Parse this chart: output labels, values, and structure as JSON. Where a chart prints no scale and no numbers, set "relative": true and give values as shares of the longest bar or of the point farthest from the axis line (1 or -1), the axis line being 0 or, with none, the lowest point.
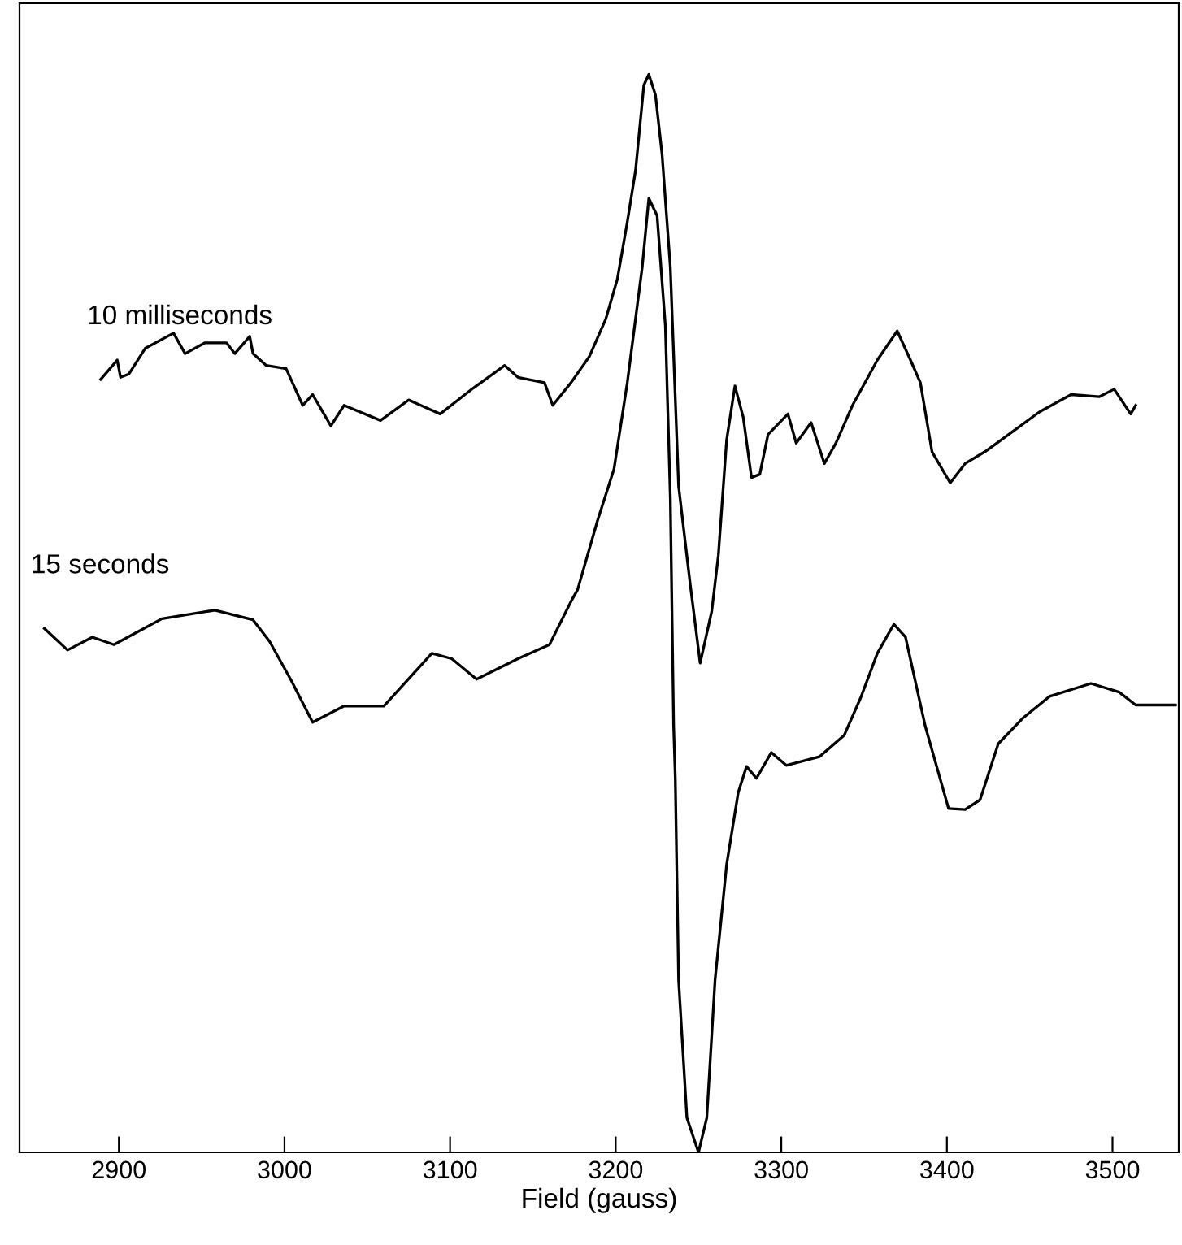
{
  "chart_data": {
    "type": "line",
    "relative": true,
    "xlabel": "Field (gauss)",
    "xlim": [
      2840,
      3540
    ],
    "xticks": [
      2900,
      3000,
      3100,
      3200,
      3300,
      3400,
      3500
    ],
    "tick_labels": "x",
    "grid": false,
    "legend": false,
    "marker": "none",
    "line_style": "solid",
    "series": [
      {
        "name": "10 milliseconds",
        "color": "#000000",
        "x": [
          2889,
          2899,
          2901,
          2906,
          2916,
          2933,
          2940,
          2952,
          2965,
          2970,
          2979,
          2981,
          2989,
          3001,
          3011,
          3017,
          3028,
          3036,
          3058,
          3075,
          3094,
          3114,
          3133,
          3141,
          3157,
          3162,
          3173,
          3184,
          3194,
          3201,
          3207,
          3212,
          3217,
          3220,
          3224,
          3228,
          3233,
          3238,
          3245,
          3251,
          3258,
          3262,
          3267,
          3272,
          3277,
          3282,
          3287,
          3292,
          3304,
          3309,
          3318,
          3326,
          3333,
          3343,
          3358,
          3370,
          3378,
          3384,
          3391,
          3402,
          3411,
          3423,
          3440,
          3456,
          3475,
          3492,
          3501,
          3511,
          3514
        ],
        "values": [
          0.717,
          0.735,
          0.719,
          0.722,
          0.746,
          0.76,
          0.741,
          0.751,
          0.751,
          0.741,
          0.757,
          0.741,
          0.73,
          0.727,
          0.693,
          0.703,
          0.674,
          0.693,
          0.679,
          0.698,
          0.685,
          0.709,
          0.73,
          0.719,
          0.714,
          0.693,
          0.714,
          0.738,
          0.773,
          0.81,
          0.863,
          0.911,
          0.99,
          1.0,
          0.981,
          0.926,
          0.821,
          0.618,
          0.527,
          0.454,
          0.502,
          0.554,
          0.661,
          0.711,
          0.682,
          0.626,
          0.629,
          0.666,
          0.685,
          0.658,
          0.677,
          0.639,
          0.658,
          0.693,
          0.735,
          0.762,
          0.735,
          0.714,
          0.65,
          0.621,
          0.639,
          0.65,
          0.669,
          0.687,
          0.703,
          0.701,
          0.708,
          0.685,
          0.693
        ]
      },
      {
        "name": "15 seconds",
        "color": "#000000",
        "x": [
          2855,
          2869,
          2884,
          2897,
          2926,
          2958,
          2981,
          2991,
          3004,
          3017,
          3036,
          3060,
          3089,
          3101,
          3116,
          3141,
          3160,
          3173,
          3177,
          3189,
          3199,
          3207,
          3216,
          3220,
          3225,
          3230,
          3233,
          3235,
          3236,
          3238,
          3243,
          3250,
          3255,
          3260,
          3267,
          3274,
          3279,
          3285,
          3294,
          3303,
          3323,
          3338,
          3348,
          3358,
          3368,
          3375,
          3387,
          3401,
          3411,
          3420,
          3431,
          3446,
          3462,
          3487,
          3504,
          3514,
          3538
        ],
        "values": [
          0.486,
          0.466,
          0.478,
          0.471,
          0.495,
          0.503,
          0.494,
          0.474,
          0.438,
          0.399,
          0.414,
          0.414,
          0.463,
          0.458,
          0.439,
          0.458,
          0.471,
          0.511,
          0.522,
          0.586,
          0.634,
          0.714,
          0.821,
          0.885,
          0.869,
          0.767,
          0.607,
          0.395,
          0.347,
          0.16,
          0.032,
          0.0,
          0.032,
          0.16,
          0.267,
          0.334,
          0.358,
          0.347,
          0.371,
          0.359,
          0.367,
          0.387,
          0.422,
          0.463,
          0.49,
          0.478,
          0.395,
          0.319,
          0.318,
          0.327,
          0.379,
          0.403,
          0.423,
          0.435,
          0.427,
          0.415,
          0.415
        ]
      }
    ]
  }
}
